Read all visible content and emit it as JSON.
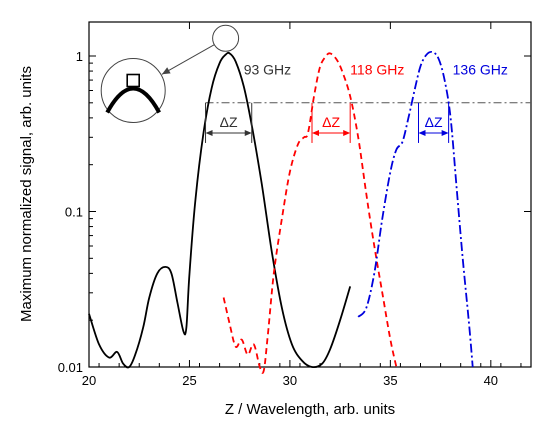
{
  "chart_data": {
    "type": "line",
    "title": "",
    "xlabel": "Z / Wavelength, arb. units",
    "ylabel": "Maximum normalized signal, arb. units",
    "xlim": [
      20,
      42
    ],
    "ylim": [
      0.01,
      2
    ],
    "yscale": "log",
    "grid": false,
    "x_ticks": [
      20,
      25,
      30,
      35,
      40
    ],
    "x_tick_labels": [
      "20",
      "25",
      "30",
      "35",
      "40"
    ],
    "y_ticks": [
      0.01,
      0.1,
      1
    ],
    "y_tick_labels": [
      "0.01",
      "0.1",
      "1"
    ],
    "reference_line": {
      "y": 0.5,
      "x_from": 25.8,
      "x_to": 42,
      "color": "#555555",
      "style": "dash-dot"
    },
    "series": [
      {
        "name": "93 GHz",
        "color": "#000000",
        "style": "solid",
        "x": [
          20.0,
          20.5,
          21.0,
          21.4,
          21.7,
          22.0,
          22.3,
          22.7,
          23.0,
          23.4,
          23.8,
          24.1,
          24.4,
          24.7,
          24.85,
          25.0,
          25.3,
          25.7,
          26.1,
          26.5,
          26.8,
          27.0,
          27.3,
          27.7,
          28.1,
          28.6,
          29.1,
          29.6,
          30.1,
          30.6,
          31.1,
          31.6,
          32.0,
          32.5,
          33.0
        ],
        "y": [
          0.022,
          0.014,
          0.0115,
          0.0125,
          0.0105,
          0.01,
          0.012,
          0.018,
          0.028,
          0.04,
          0.044,
          0.04,
          0.026,
          0.017,
          0.018,
          0.04,
          0.12,
          0.32,
          0.62,
          0.9,
          1.02,
          1.04,
          0.92,
          0.64,
          0.36,
          0.15,
          0.055,
          0.024,
          0.014,
          0.011,
          0.01,
          0.0105,
          0.013,
          0.02,
          0.033
        ]
      },
      {
        "name": "118 GHz",
        "color": "#ff0000",
        "style": "dashed",
        "x": [
          26.7,
          27.0,
          27.3,
          27.6,
          27.9,
          28.2,
          28.5,
          28.7,
          28.9,
          29.2,
          29.6,
          30.0,
          30.4,
          30.7,
          30.9,
          31.2,
          31.5,
          31.8,
          32.0,
          32.3,
          32.6,
          33.0,
          33.4,
          33.8,
          34.2,
          34.6,
          35.0,
          35.3
        ],
        "y": [
          0.028,
          0.019,
          0.0135,
          0.015,
          0.012,
          0.014,
          0.01,
          0.0095,
          0.016,
          0.04,
          0.09,
          0.18,
          0.27,
          0.3,
          0.32,
          0.55,
          0.85,
          1.0,
          1.04,
          0.96,
          0.8,
          0.55,
          0.3,
          0.13,
          0.06,
          0.03,
          0.015,
          0.01
        ]
      },
      {
        "name": "136 GHz",
        "color": "#0000dd",
        "style": "dash-dot",
        "x": [
          33.4,
          33.8,
          34.2,
          34.6,
          35.0,
          35.3,
          35.6,
          35.9,
          36.2,
          36.5,
          36.8,
          37.1,
          37.4,
          37.7,
          38.0,
          38.3,
          38.6,
          38.9,
          39.1
        ],
        "y": [
          0.021,
          0.024,
          0.04,
          0.09,
          0.18,
          0.25,
          0.28,
          0.4,
          0.6,
          0.86,
          1.02,
          1.06,
          0.96,
          0.7,
          0.4,
          0.14,
          0.05,
          0.02,
          0.01
        ]
      }
    ],
    "delta_markers": [
      {
        "label": "ΔZ",
        "x1": 25.8,
        "x2": 28.1,
        "y_top": 0.5,
        "y_arrow": 0.32,
        "color": "#333333",
        "label_y": 0.2
      },
      {
        "label": "ΔZ",
        "x1": 31.1,
        "x2": 33.0,
        "y_top": 0.5,
        "y_arrow": 0.32,
        "color": "#ff0000",
        "label_y": 0.2
      },
      {
        "label": "ΔZ",
        "x1": 36.4,
        "x2": 37.9,
        "y_top": 0.5,
        "y_arrow": 0.32,
        "color": "#0000dd",
        "label_y": 0.2
      }
    ],
    "annotations": [
      {
        "text": "93 GHz",
        "x": 27.7,
        "y": 0.82,
        "color": "#333333"
      },
      {
        "text": "118 GHz",
        "x": 33.0,
        "y": 0.82,
        "color": "#ff0000"
      },
      {
        "text": "136 GHz",
        "x": 38.1,
        "y": 0.82,
        "color": "#0000dd"
      }
    ],
    "inset": {
      "description": "magnified peak",
      "source_x": 26.8,
      "source_y": 1.3,
      "target_x": 22.2,
      "target_y": 0.6
    }
  }
}
